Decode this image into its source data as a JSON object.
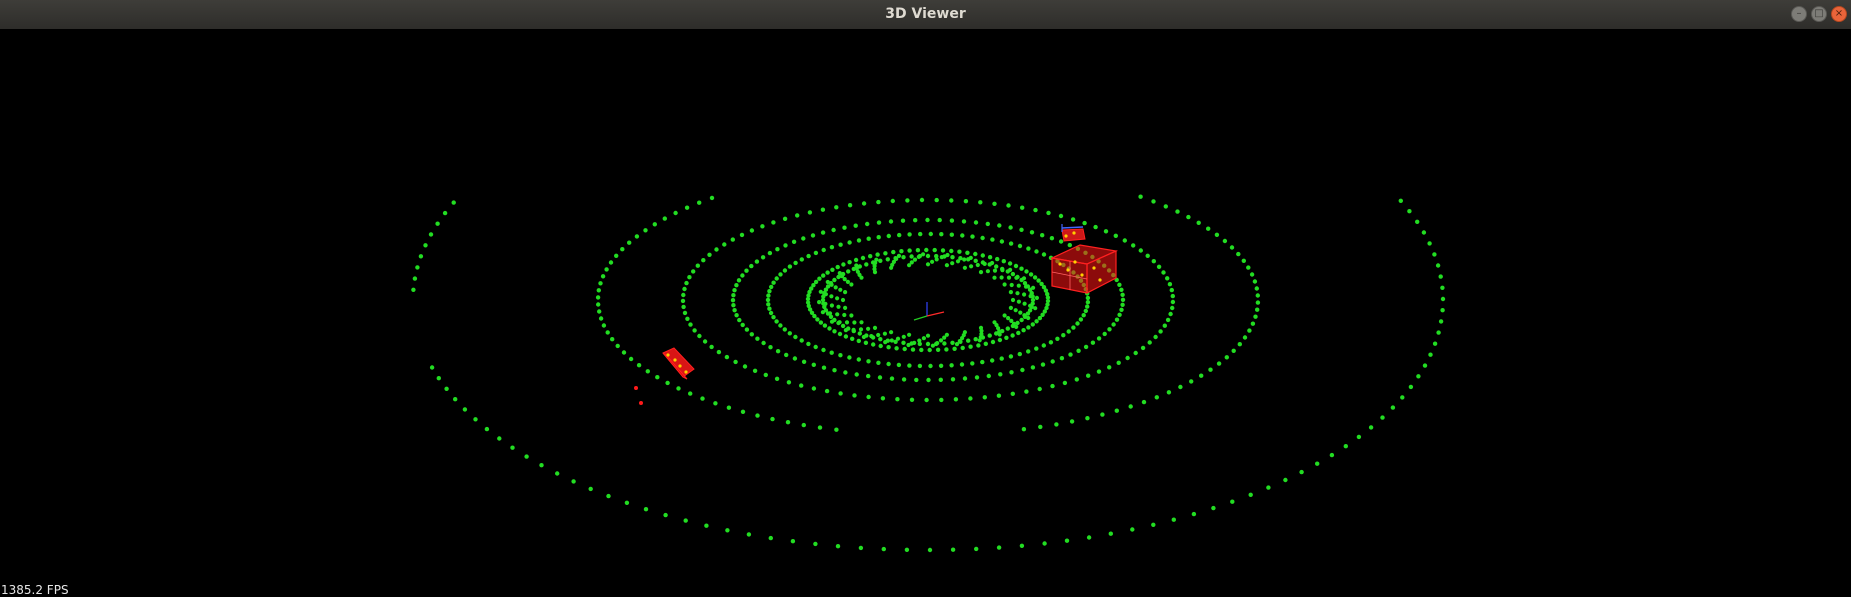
{
  "window": {
    "title": "3D Viewer"
  },
  "controls": {
    "minimize": "–",
    "maximize": "□",
    "close": "×"
  },
  "overlay": {
    "fps": "1385.2 FPS"
  },
  "colors": {
    "points": "#22dd22",
    "boxes": "#ff1a1a",
    "highlight": "#ffd000",
    "background": "#000000"
  }
}
